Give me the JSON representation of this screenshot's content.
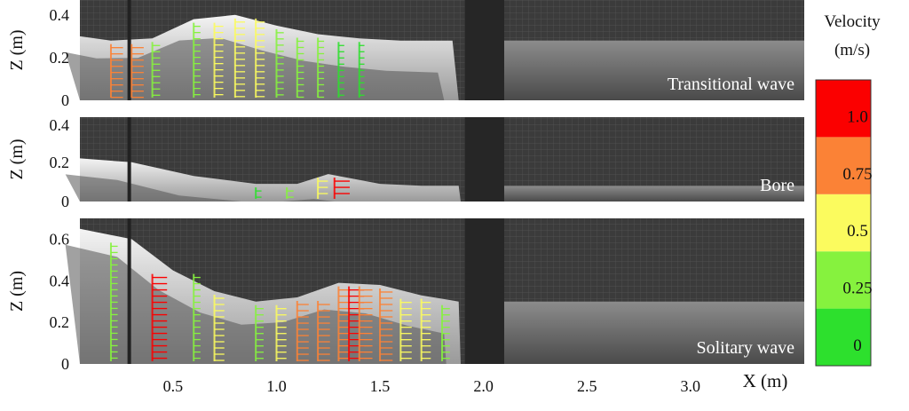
{
  "figure": {
    "x_axis_label": "X (m)",
    "x_ticks": [
      "0.5",
      "1.0",
      "1.5",
      "2.0",
      "2.5",
      "3.0"
    ],
    "x_tick_values": [
      0.5,
      1.0,
      1.5,
      2.0,
      2.5,
      3.0
    ],
    "xlim": [
      0.05,
      3.55
    ]
  },
  "colorbar": {
    "title_line1": "Velocity",
    "title_line2": "(m/s)",
    "tick_labels": [
      "0",
      "0.25",
      "0.5",
      "0.75",
      "1.0"
    ],
    "tick_values": [
      0,
      0.25,
      0.5,
      0.75,
      1.0
    ],
    "range": [
      0,
      1.25
    ],
    "colors": [
      "#2de02d",
      "#86f23e",
      "#fbfb5e",
      "#fb8236",
      "#fb0000"
    ]
  },
  "chart_data": [
    {
      "type": "scatter",
      "panel_label": "Transitional wave",
      "ylabel": "Z (m)",
      "y_ticks": [
        "0",
        "0.2",
        "0.4"
      ],
      "y_tick_values": [
        0,
        0.2,
        0.4
      ],
      "ylim": [
        0,
        0.47
      ],
      "free_surface": {
        "x": [
          0.05,
          0.2,
          0.4,
          0.6,
          0.8,
          1.0,
          1.2,
          1.4,
          1.6,
          1.85,
          1.88
        ],
        "y": [
          0.3,
          0.28,
          0.29,
          0.38,
          0.4,
          0.35,
          0.31,
          0.29,
          0.28,
          0.28,
          0.0
        ]
      },
      "still_water": {
        "x_start": 2.1,
        "x_end": 3.55,
        "y": 0.28
      },
      "velocity_columns": [
        {
          "x": 0.2,
          "speed": 0.8
        },
        {
          "x": 0.3,
          "speed": 0.8
        },
        {
          "x": 0.4,
          "speed": 0.4
        },
        {
          "x": 0.6,
          "speed": 0.3
        },
        {
          "x": 0.7,
          "speed": 0.5
        },
        {
          "x": 0.8,
          "speed": 0.6
        },
        {
          "x": 0.9,
          "speed": 0.5
        },
        {
          "x": 1.0,
          "speed": 0.35
        },
        {
          "x": 1.1,
          "speed": 0.3
        },
        {
          "x": 1.2,
          "speed": 0.25
        },
        {
          "x": 1.3,
          "speed": 0.2
        },
        {
          "x": 1.4,
          "speed": 0.15
        }
      ]
    },
    {
      "type": "scatter",
      "panel_label": "Bore",
      "ylabel": "Z (m)",
      "y_ticks": [
        "0",
        "0.2",
        "0.4"
      ],
      "y_tick_values": [
        0,
        0.2,
        0.4
      ],
      "ylim": [
        0,
        0.43
      ],
      "free_surface": {
        "x": [
          0.05,
          0.3,
          0.6,
          0.9,
          1.1,
          1.25,
          1.35,
          1.5,
          1.7,
          1.88,
          1.89
        ],
        "y": [
          0.22,
          0.2,
          0.13,
          0.09,
          0.09,
          0.14,
          0.12,
          0.09,
          0.08,
          0.08,
          0.0
        ]
      },
      "still_water": {
        "x_start": 2.1,
        "x_end": 3.55,
        "y": 0.08
      },
      "velocity_columns": [
        {
          "x": 0.9,
          "speed": 0.2
        },
        {
          "x": 1.05,
          "speed": 0.3
        },
        {
          "x": 1.2,
          "speed": 0.6
        },
        {
          "x": 1.28,
          "speed": 1.1
        }
      ]
    },
    {
      "type": "scatter",
      "panel_label": "Solitary wave",
      "ylabel": "Z (m)",
      "y_ticks": [
        "0",
        "0.2",
        "0.4",
        "0.6"
      ],
      "y_tick_values": [
        0,
        0.2,
        0.4,
        0.6
      ],
      "ylim": [
        0,
        0.7
      ],
      "free_surface": {
        "x": [
          0.05,
          0.3,
          0.5,
          0.7,
          0.9,
          1.1,
          1.3,
          1.5,
          1.7,
          1.88,
          1.89
        ],
        "y": [
          0.65,
          0.6,
          0.45,
          0.35,
          0.3,
          0.32,
          0.39,
          0.38,
          0.33,
          0.3,
          0.0
        ]
      },
      "still_water": {
        "x_start": 2.1,
        "x_end": 3.55,
        "y": 0.3
      },
      "velocity_columns": [
        {
          "x": 0.2,
          "speed": 0.3
        },
        {
          "x": 0.4,
          "speed": 1.05
        },
        {
          "x": 0.6,
          "speed": 0.3
        },
        {
          "x": 0.7,
          "speed": 0.6
        },
        {
          "x": 0.9,
          "speed": 0.4
        },
        {
          "x": 1.0,
          "speed": 0.6
        },
        {
          "x": 1.1,
          "speed": 0.75
        },
        {
          "x": 1.2,
          "speed": 0.8
        },
        {
          "x": 1.3,
          "speed": 0.85
        },
        {
          "x": 1.35,
          "speed": 1.1
        },
        {
          "x": 1.4,
          "speed": 0.9
        },
        {
          "x": 1.5,
          "speed": 0.85
        },
        {
          "x": 1.6,
          "speed": 0.7
        },
        {
          "x": 1.7,
          "speed": 0.55
        },
        {
          "x": 1.8,
          "speed": 0.4
        }
      ]
    }
  ]
}
